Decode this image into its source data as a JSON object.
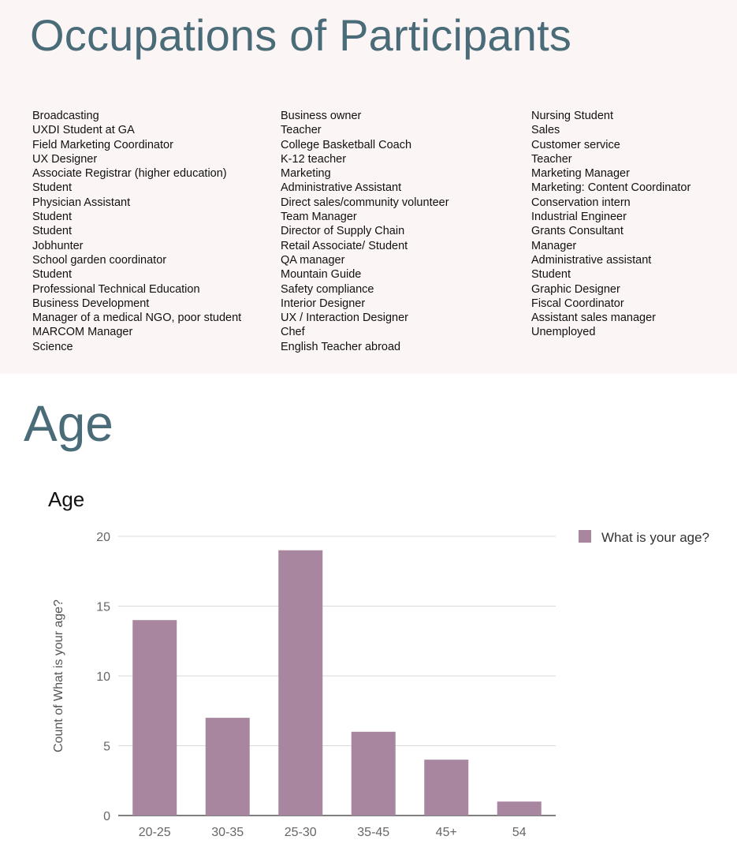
{
  "occupations": {
    "title": "Occupations of Participants",
    "columns": [
      [
        "Broadcasting",
        "UXDI Student at GA",
        "Field Marketing Coordinator",
        "UX Designer",
        "Associate Registrar (higher education)",
        "Student",
        "Physician Assistant",
        "Student",
        "Student",
        "Jobhunter",
        "School garden coordinator",
        "Student",
        "Professional Technical Education",
        "Business Development",
        "Manager of a medical NGO, poor student",
        "MARCOM Manager",
        "Science"
      ],
      [
        "Business owner",
        "Teacher",
        "College Basketball Coach",
        "K-12 teacher",
        "Marketing",
        "Administrative Assistant",
        "Direct sales/community volunteer",
        "Team Manager",
        "Director of Supply Chain",
        "Retail Associate/ Student",
        "QA manager",
        "Mountain Guide",
        "Safety compliance",
        "Interior Designer",
        "UX / Interaction Designer",
        "Chef",
        "English Teacher abroad"
      ],
      [
        "Nursing Student",
        "Sales",
        "Customer service",
        "Teacher",
        "Marketing Manager",
        "Marketing: Content Coordinator",
        "Conservation intern",
        "Industrial Engineer",
        "Grants Consultant",
        "Manager",
        "Administrative assistant",
        "Student",
        "Graphic Designer",
        "Fiscal Coordinator",
        "Assistant sales manager",
        "Unemployed"
      ]
    ]
  },
  "age_section": {
    "title": "Age"
  },
  "chart_data": {
    "type": "bar",
    "title": "Age",
    "categories": [
      "20-25",
      "30-35",
      "25-30",
      "35-45",
      "45+",
      "54"
    ],
    "series": [
      {
        "name": "What is your age?",
        "values": [
          14,
          7,
          19,
          6,
          4,
          1
        ],
        "color": "#a8869f"
      }
    ],
    "ylabel": "Count of What is your age?",
    "xlabel": "",
    "ylim": [
      0,
      20
    ],
    "yticks": [
      0,
      5,
      10,
      15,
      20
    ],
    "grid": true,
    "legend_position": "right"
  }
}
